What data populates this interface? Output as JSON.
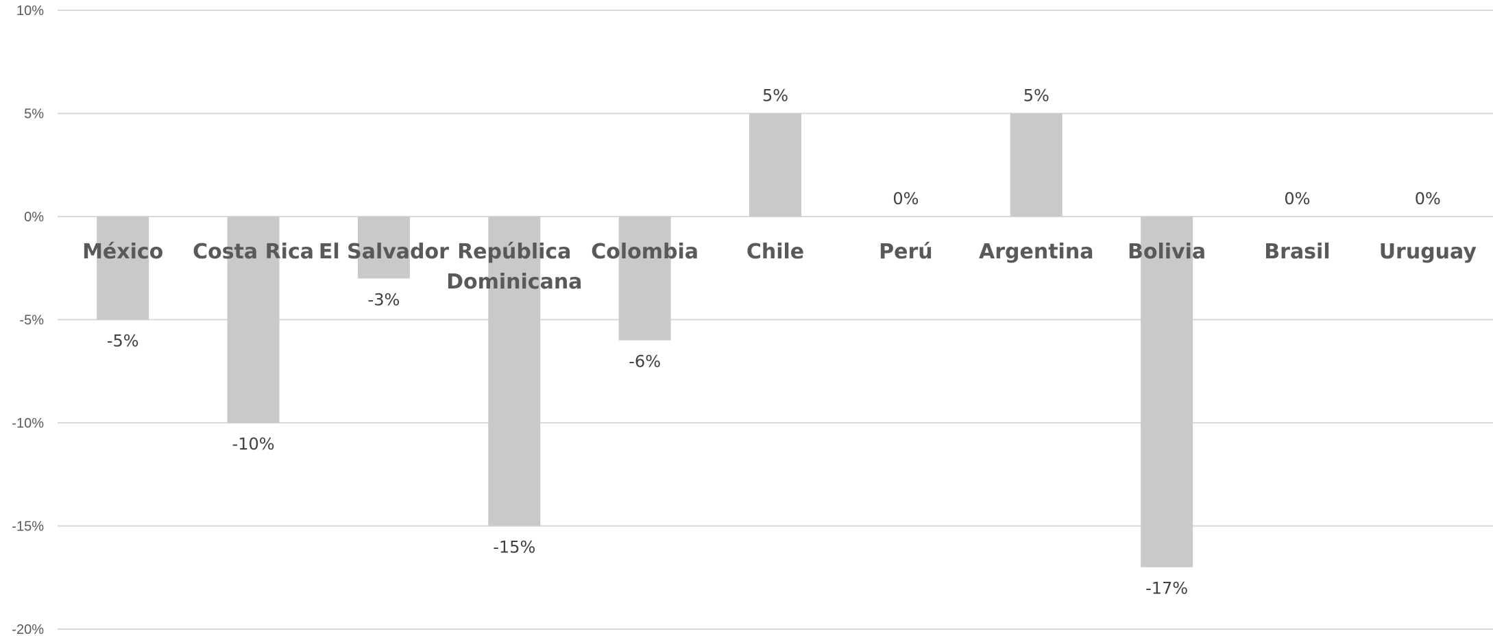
{
  "chart_data": {
    "type": "bar",
    "categories": [
      [
        "México"
      ],
      [
        "Costa Rica"
      ],
      [
        "El Salvador"
      ],
      [
        "República",
        "Dominicana"
      ],
      [
        "Colombia"
      ],
      [
        "Chile"
      ],
      [
        "Perú"
      ],
      [
        "Argentina"
      ],
      [
        "Bolivia"
      ],
      [
        "Brasil"
      ],
      [
        "Uruguay"
      ]
    ],
    "values": [
      -5,
      -10,
      -3,
      -15,
      -6,
      5,
      0,
      5,
      -17,
      0,
      0
    ],
    "data_labels": [
      "-5%",
      "-10%",
      "-3%",
      "-15%",
      "-6%",
      "5%",
      "0%",
      "5%",
      "-17%",
      "0%",
      "0%"
    ],
    "ylim": [
      -20,
      10
    ],
    "yticks": [
      10,
      5,
      0,
      -5,
      -10,
      -15,
      -20
    ],
    "ytick_labels": [
      "10%",
      "5%",
      "0%",
      "-5%",
      "-10%",
      "-15%",
      "-20%"
    ],
    "bar_color": "#c8c9ca",
    "grid": true,
    "title": "",
    "xlabel": "",
    "ylabel": ""
  }
}
